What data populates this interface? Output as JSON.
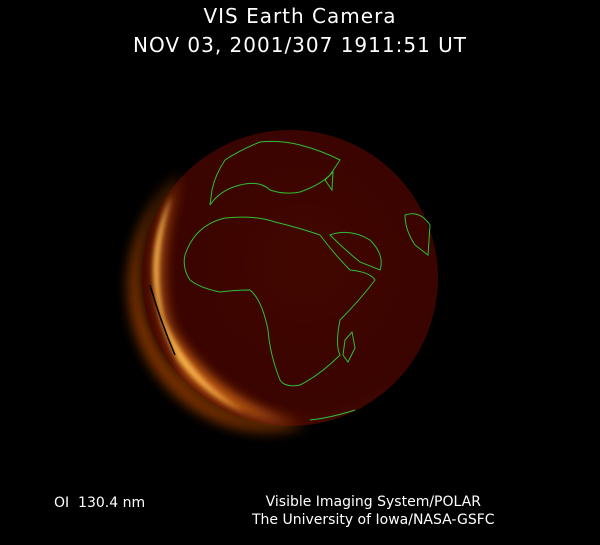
{
  "header": {
    "title": "VIS Earth Camera",
    "timestamp": "NOV 03, 2001/307 1911:51 UT"
  },
  "footer": {
    "band": "OI  130.4 nm",
    "credit_line1": "Visible Imaging System/POLAR",
    "credit_line2": "The University of Iowa/NASA-GSFC"
  },
  "colors": {
    "background": "#000000",
    "earth_disk": "#3c0500",
    "aurora_glow": "#f0a030",
    "coastlines": "#2fbf2f"
  }
}
